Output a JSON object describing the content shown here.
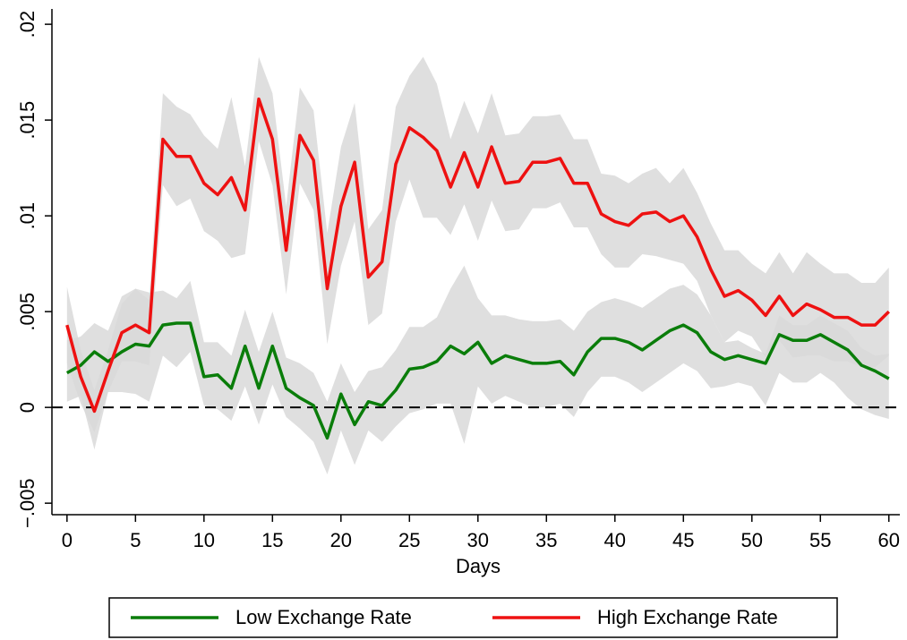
{
  "chart_data": {
    "type": "line",
    "xlabel": "Days",
    "x": [
      0,
      1,
      2,
      3,
      4,
      5,
      6,
      7,
      8,
      9,
      10,
      11,
      12,
      13,
      14,
      15,
      16,
      17,
      18,
      19,
      20,
      21,
      22,
      23,
      24,
      25,
      26,
      27,
      28,
      29,
      30,
      31,
      32,
      33,
      34,
      35,
      36,
      37,
      38,
      39,
      40,
      41,
      42,
      43,
      44,
      45,
      46,
      47,
      48,
      49,
      50,
      51,
      52,
      53,
      54,
      55,
      56,
      57,
      58,
      59,
      60
    ],
    "xlim": [
      -1.1,
      60.8
    ],
    "xticks": [
      0,
      5,
      10,
      15,
      20,
      25,
      30,
      35,
      40,
      45,
      50,
      55,
      60
    ],
    "ylim": [
      -0.0056,
      0.0208
    ],
    "yticks": [
      {
        "value": -0.005,
        "label": "−.005"
      },
      0,
      {
        "value": 0.005,
        "label": ".005"
      },
      {
        "value": 0.01,
        "label": ".01"
      },
      {
        "value": 0.015,
        "label": ".015"
      },
      {
        "value": 0.02,
        "label": ".02"
      }
    ],
    "reference_line": 0,
    "band_color": "#d9d9d9",
    "legend": "bottom",
    "series": [
      {
        "name": "Low Exchange Rate",
        "color": "#0a7d0a",
        "values": [
          0.0018,
          0.0022,
          0.0029,
          0.0024,
          0.0029,
          0.0033,
          0.0032,
          0.0043,
          0.0044,
          0.0044,
          0.0016,
          0.0017,
          0.001,
          0.0032,
          0.001,
          0.0032,
          0.001,
          0.0005,
          0.0001,
          -0.0016,
          0.0007,
          -0.0009,
          0.0003,
          0.0001,
          0.0009,
          0.002,
          0.0021,
          0.0024,
          0.0032,
          0.0028,
          0.0034,
          0.0023,
          0.0027,
          0.0025,
          0.0023,
          0.0023,
          0.0024,
          0.0017,
          0.0029,
          0.0036,
          0.0036,
          0.0034,
          0.003,
          0.0035,
          0.004,
          0.0043,
          0.0039,
          0.0029,
          0.0025,
          0.0027,
          0.0025,
          0.0023,
          0.0038,
          0.0035,
          0.0035,
          0.0038,
          0.0034,
          0.003,
          0.0022,
          0.0019,
          0.0015
        ],
        "ci_upper": [
          0.0035,
          0.0037,
          0.0044,
          0.004,
          0.0058,
          0.0062,
          0.006,
          0.0061,
          0.0057,
          0.0066,
          0.0034,
          0.0034,
          0.0027,
          0.0051,
          0.0029,
          0.005,
          0.0026,
          0.0023,
          0.0018,
          0.0003,
          0.0023,
          0.0008,
          0.0019,
          0.0021,
          0.003,
          0.0042,
          0.0042,
          0.0047,
          0.0062,
          0.0074,
          0.0057,
          0.0048,
          0.0048,
          0.0046,
          0.0045,
          0.0045,
          0.0046,
          0.004,
          0.005,
          0.0055,
          0.0057,
          0.0055,
          0.0052,
          0.0057,
          0.0062,
          0.0064,
          0.0059,
          0.0048,
          0.0034,
          0.0035,
          0.0031,
          0.0028,
          0.0048,
          0.0043,
          0.0043,
          0.0048,
          0.0044,
          0.004,
          0.0031,
          0.0027,
          0.0028
        ],
        "ci_lower": [
          0.0003,
          0.0006,
          -0.0022,
          0.0008,
          0.0008,
          0.0007,
          0.0003,
          0.0027,
          0.0021,
          0.0029,
          0.0001,
          -0.0001,
          -0.0007,
          0.0011,
          -0.0009,
          0.0012,
          -0.0005,
          -0.0011,
          -0.0018,
          -0.0035,
          -0.0012,
          -0.003,
          -0.0012,
          -0.0018,
          -0.001,
          -0.0003,
          -0.0001,
          0.0002,
          0.0002,
          -0.0019,
          0.0011,
          0.0002,
          0.0006,
          0.0003,
          0.0,
          0.0,
          0.0002,
          -0.0005,
          0.0008,
          0.0016,
          0.0016,
          0.0013,
          0.0008,
          0.0013,
          0.0018,
          0.0023,
          0.0019,
          0.001,
          0.0011,
          0.0013,
          0.0011,
          0.0001,
          0.0018,
          0.0013,
          0.0013,
          0.0018,
          0.0013,
          0.0005,
          -0.0001,
          -0.0004,
          -0.0006
        ]
      },
      {
        "name": "High Exchange Rate",
        "color": "#ee1111",
        "values": [
          0.0043,
          0.0016,
          -0.0002,
          0.0019,
          0.0039,
          0.0043,
          0.0039,
          0.014,
          0.0131,
          0.0131,
          0.0117,
          0.0111,
          0.012,
          0.0103,
          0.0161,
          0.014,
          0.0082,
          0.0142,
          0.0129,
          0.0062,
          0.0105,
          0.0128,
          0.0068,
          0.0076,
          0.0127,
          0.0146,
          0.0141,
          0.0134,
          0.0115,
          0.0133,
          0.0115,
          0.0136,
          0.0117,
          0.0118,
          0.0128,
          0.0128,
          0.013,
          0.0117,
          0.0117,
          0.0101,
          0.0097,
          0.0095,
          0.0101,
          0.0102,
          0.0097,
          0.01,
          0.0089,
          0.0072,
          0.0058,
          0.0061,
          0.0056,
          0.0048,
          0.0058,
          0.0048,
          0.0054,
          0.0051,
          0.0047,
          0.0047,
          0.0043,
          0.0043,
          0.005
        ],
        "ci_upper": [
          0.0063,
          0.003,
          0.0009,
          0.003,
          0.0054,
          0.0062,
          0.0056,
          0.0164,
          0.0157,
          0.0153,
          0.0142,
          0.0135,
          0.0162,
          0.0126,
          0.0183,
          0.0164,
          0.0105,
          0.0167,
          0.0155,
          0.0091,
          0.0136,
          0.0159,
          0.0093,
          0.0103,
          0.0157,
          0.0173,
          0.0183,
          0.0169,
          0.014,
          0.016,
          0.0143,
          0.0164,
          0.0142,
          0.0143,
          0.0152,
          0.0152,
          0.0153,
          0.014,
          0.014,
          0.0122,
          0.0121,
          0.0117,
          0.0122,
          0.0125,
          0.0117,
          0.0125,
          0.0112,
          0.0096,
          0.0082,
          0.0082,
          0.0075,
          0.007,
          0.0081,
          0.007,
          0.0081,
          0.0075,
          0.007,
          0.007,
          0.0065,
          0.0065,
          0.0073
        ],
        "ci_lower": [
          0.0023,
          0.0002,
          -0.0013,
          0.0008,
          0.0024,
          0.0024,
          0.0022,
          0.0116,
          0.0105,
          0.0109,
          0.0092,
          0.0087,
          0.0078,
          0.008,
          0.0139,
          0.0116,
          0.0059,
          0.0117,
          0.0103,
          0.0033,
          0.0074,
          0.0097,
          0.0043,
          0.0049,
          0.0097,
          0.0119,
          0.0099,
          0.0099,
          0.009,
          0.0106,
          0.0087,
          0.0108,
          0.0092,
          0.0093,
          0.0104,
          0.0104,
          0.0107,
          0.0094,
          0.0094,
          0.008,
          0.0073,
          0.0073,
          0.008,
          0.0079,
          0.0077,
          0.0075,
          0.0066,
          0.0048,
          0.0034,
          0.004,
          0.0037,
          0.0026,
          0.0035,
          0.0026,
          0.0027,
          0.0027,
          0.0024,
          0.0024,
          0.0021,
          0.0021,
          0.0027
        ]
      }
    ]
  }
}
